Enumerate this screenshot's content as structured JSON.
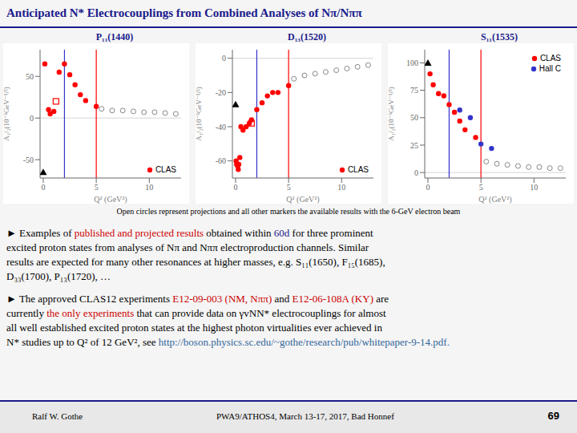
{
  "title": "Anticipated N* Electrocouplings from Combined Analyses of Nπ/Nππ",
  "chart_data": [
    {
      "type": "scatter",
      "title": "P₁₁(1440)",
      "xlabel": "Q² (GeV²)",
      "ylabel": "A₁/₂(10⁻³GeV⁻¹/²)",
      "xlim": [
        -0.3,
        13
      ],
      "ylim": [
        -72,
        82
      ],
      "xticks": [
        0,
        5,
        10
      ],
      "yticks": [
        -50,
        0,
        50
      ],
      "grid": false,
      "legend": "lower right",
      "reference_lines": [
        {
          "y": 0,
          "color": "#cccccc"
        },
        {
          "x": 2.0,
          "color": "#3333cc"
        },
        {
          "x": 5.0,
          "color": "red"
        }
      ],
      "series": [
        {
          "name": "CLAS",
          "color": "red",
          "marker": "circle",
          "values": [
            [
              0.15,
              65
            ],
            [
              0.5,
              10
            ],
            [
              0.65,
              5
            ],
            [
              1.0,
              8
            ],
            [
              1.5,
              55
            ],
            [
              2.0,
              65
            ],
            [
              2.5,
              52
            ],
            [
              3.0,
              40
            ],
            [
              3.5,
              28
            ],
            [
              4.0,
              21
            ],
            [
              5.0,
              14
            ]
          ]
        },
        {
          "color": "#888888",
          "marker": "open_circle",
          "values": [
            [
              5.5,
              11
            ],
            [
              6.5,
              9
            ],
            [
              7.5,
              9
            ],
            [
              8.5,
              8
            ],
            [
              9.5,
              7
            ],
            [
              10.5,
              7
            ],
            [
              11.5,
              6
            ],
            [
              12.5,
              5
            ]
          ]
        },
        {
          "color": "red",
          "marker": "open_square",
          "values": [
            [
              1.2,
              20
            ]
          ]
        },
        {
          "color": "black",
          "marker": "triangle",
          "values": [
            [
              0.0,
              -65
            ]
          ]
        }
      ]
    },
    {
      "type": "scatter",
      "title": "D₁₃(1520)",
      "xlabel": "Q² (GeV²)",
      "ylabel": "A₁/₂(10⁻³GeV⁻¹/²)",
      "xlim": [
        -0.3,
        13
      ],
      "ylim": [
        -70,
        5
      ],
      "xticks": [
        0,
        5,
        10
      ],
      "yticks": [
        -60,
        -40,
        -20,
        0
      ],
      "grid": false,
      "legend": "lower right",
      "reference_lines": [
        {
          "y": 0,
          "color": "#cccccc"
        },
        {
          "x": 2.0,
          "color": "#3333cc"
        },
        {
          "x": 5.0,
          "color": "red"
        }
      ],
      "series": [
        {
          "name": "CLAS",
          "color": "red",
          "marker": "circle",
          "values": [
            [
              0.5,
              -40
            ],
            [
              0.7,
              -42
            ],
            [
              1.0,
              -40
            ],
            [
              1.3,
              -38
            ],
            [
              1.5,
              -36
            ],
            [
              2.0,
              -30
            ],
            [
              2.5,
              -26
            ],
            [
              3.0,
              -22
            ],
            [
              3.5,
              -20
            ],
            [
              4.0,
              -20
            ],
            [
              5.0,
              -16
            ],
            [
              0.05,
              -60
            ],
            [
              0.1,
              -62
            ],
            [
              0.2,
              -63
            ],
            [
              0.25,
              -65
            ],
            [
              0.3,
              -62
            ],
            [
              0.4,
              -58
            ]
          ]
        },
        {
          "color": "#888888",
          "marker": "open_circle",
          "values": [
            [
              5.5,
              -12
            ],
            [
              6.5,
              -10
            ],
            [
              7.5,
              -9
            ],
            [
              8.5,
              -8
            ],
            [
              9.5,
              -7
            ],
            [
              10.5,
              -6
            ],
            [
              11.5,
              -5
            ],
            [
              12.5,
              -4
            ]
          ]
        },
        {
          "color": "red",
          "marker": "open_square",
          "values": [
            [
              1.5,
              -38
            ]
          ]
        },
        {
          "color": "black",
          "marker": "triangle",
          "values": [
            [
              0.0,
              -27
            ]
          ]
        }
      ]
    },
    {
      "type": "scatter",
      "title": "S₁₁(1535)",
      "xlabel": "Q² (GeV²)",
      "ylabel": "A₁/₂(10⁻³GeV⁻¹/²)",
      "xlim": [
        -0.3,
        13
      ],
      "ylim": [
        -5,
        112
      ],
      "xticks": [
        0,
        5,
        10
      ],
      "yticks": [
        0,
        25,
        50,
        75,
        100
      ],
      "grid": false,
      "legend": "upper right",
      "reference_lines": [
        {
          "y": 0,
          "color": "#cccccc"
        },
        {
          "x": 2.0,
          "color": "#3333cc"
        },
        {
          "x": 5.0,
          "color": "red"
        }
      ],
      "series": [
        {
          "name": "CLAS",
          "color": "red",
          "marker": "circle",
          "values": [
            [
              0.2,
              90
            ],
            [
              0.5,
              80
            ],
            [
              1.0,
              72
            ],
            [
              1.5,
              70
            ],
            [
              2.0,
              62
            ],
            [
              2.5,
              55
            ],
            [
              3.0,
              47
            ],
            [
              3.5,
              39
            ],
            [
              4.5,
              32
            ]
          ]
        },
        {
          "name": "Hall C",
          "color": "#3333cc",
          "marker": "circle",
          "values": [
            [
              3.0,
              57
            ],
            [
              4.0,
              50
            ],
            [
              5.0,
              26
            ],
            [
              6.0,
              22
            ]
          ]
        },
        {
          "color": "#888888",
          "marker": "open_circle",
          "values": [
            [
              5.5,
              10
            ],
            [
              6.5,
              8
            ],
            [
              7.5,
              7
            ],
            [
              8.5,
              6
            ],
            [
              9.5,
              5
            ],
            [
              10.5,
              5
            ],
            [
              11.5,
              4
            ],
            [
              12.5,
              4
            ]
          ]
        },
        {
          "color": "black",
          "marker": "triangle",
          "values": [
            [
              0.0,
              100
            ]
          ]
        }
      ]
    }
  ],
  "footnote": "Open circles represent projections and all other markers the available results with the 6-GeV electron beam",
  "paragraphs": [
    [
      [
        {
          "text": "► Examples of ",
          "color": "black"
        },
        {
          "text": "published and projected results",
          "color": "#cc0000"
        },
        {
          "text": " obtained within ",
          "color": "black"
        },
        {
          "text": "60d",
          "color": "#1a1a8c"
        },
        {
          "text": " for three prominent",
          "color": "black"
        }
      ],
      [
        {
          "text": "excited proton states from analyses of Nπ and Nππ electroproduction channels. Similar",
          "color": "black"
        }
      ],
      [
        {
          "text": "results are expected for many other resonances at higher masses, e.g. S₁₁(1650), F₁₅(1685),",
          "color": "black"
        }
      ],
      [
        {
          "text": "D₃₃(1700), P₁₃(1720), …",
          "color": "black"
        }
      ]
    ],
    [
      [
        {
          "text": "► The approved CLAS12 experiments ",
          "color": "black"
        },
        {
          "text": "E12-09-003 (NM, Nππ)",
          "color": "#cc0000"
        },
        {
          "text": " and ",
          "color": "black"
        },
        {
          "text": "E12-06-108A (KY)",
          "color": "#cc0000"
        },
        {
          "text": " are",
          "color": "black"
        }
      ],
      [
        {
          "text": "currently ",
          "color": "black"
        },
        {
          "text": "the only experiments",
          "color": "#cc0000"
        },
        {
          "text": " that can provide data on γvNN* electrocouplings for almost",
          "color": "black"
        }
      ],
      [
        {
          "text": "all well established excited proton states at the highest photon virtualities ever achieved in",
          "color": "black"
        }
      ],
      [
        {
          "text": "N* studies up to Q² of 12 GeV², see ",
          "color": "black"
        },
        {
          "text": "http://boson.physics.sc.edu/~gothe/research/pub/whitepaper-9-14.pdf.",
          "color": "#336699"
        }
      ]
    ]
  ],
  "footer": [
    "Ralf W. Gothe",
    "PWA9/ATHOS4, March 13-17, 2017, Bad Honnef",
    "69"
  ]
}
